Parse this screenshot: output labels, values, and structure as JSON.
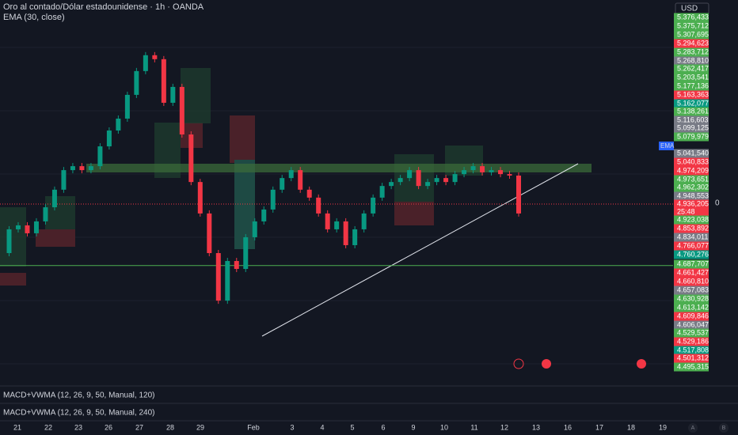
{
  "header": {
    "symbol": "Oro al contado/Dólar estadounidense · 1h · OANDA",
    "indicator": "EMA (30, close)"
  },
  "chart": {
    "ylim": [
      4227,
      5760
    ],
    "closes": [
      4738,
      4834,
      4850,
      4818,
      4866,
      4923,
      4994,
      5073,
      5089,
      5073,
      5089,
      5169,
      5233,
      5281,
      5377,
      5473,
      5537,
      5521,
      5345,
      5409,
      5217,
      5025,
      4898,
      4738,
      4546,
      4706,
      4674,
      4802,
      4866,
      4914,
      4994,
      5041,
      5073,
      4994,
      4962,
      4898,
      4834,
      4866,
      4770,
      4834,
      4898,
      4962,
      5009,
      5025,
      5041,
      5073,
      5009,
      5025,
      5041,
      5025,
      5057,
      5073,
      5089,
      5064,
      5073,
      5057,
      5051,
      4898
    ],
    "current_price": 4936.205,
    "support_level": 4687.707,
    "up_color": "#089981",
    "down_color": "#f23645"
  },
  "price_axis": {
    "currency": "USD",
    "ema_badge": "EMA",
    "countdown": "25:48",
    "zero": "0",
    "labels": [
      {
        "text": "5.376,433",
        "color": "#4caf50"
      },
      {
        "text": "5.375,712",
        "color": "#4caf50"
      },
      {
        "text": "5.307,695",
        "color": "#4caf50"
      },
      {
        "text": "5.294,623",
        "color": "#f23645"
      },
      {
        "text": "5.283,712",
        "color": "#4caf50"
      },
      {
        "text": "5.268,810",
        "color": "#787b86"
      },
      {
        "text": "5.262,417",
        "color": "#4caf50"
      },
      {
        "text": "5.203,541",
        "color": "#4caf50"
      },
      {
        "text": "5.177,136",
        "color": "#4caf50"
      },
      {
        "text": "5.163,363",
        "color": "#f23645"
      },
      {
        "text": "5.162,077",
        "color": "#089981"
      },
      {
        "text": "5.138,261",
        "color": "#4caf50"
      },
      {
        "text": "5.116,603",
        "color": "#787b86"
      },
      {
        "text": "5.099,125",
        "color": "#787b86"
      },
      {
        "text": "5.079,979",
        "color": "#4caf50"
      },
      {
        "text": "5.041,540",
        "color": "#787b86"
      },
      {
        "text": "5.040,833",
        "color": "#f23645"
      },
      {
        "text": "4.974,209",
        "color": "#f23645"
      },
      {
        "text": "4.973,651",
        "color": "#4caf50"
      },
      {
        "text": "4.962,302",
        "color": "#4caf50"
      },
      {
        "text": "4.948,553",
        "color": "#787b86"
      },
      {
        "text": "4.936,205",
        "color": "#f23645"
      },
      {
        "text": "4.923,038",
        "color": "#4caf50"
      },
      {
        "text": "4.853,892",
        "color": "#f23645"
      },
      {
        "text": "4.834,011",
        "color": "#787b86"
      },
      {
        "text": "4.766,077",
        "color": "#f23645"
      },
      {
        "text": "4.760,276",
        "color": "#089981"
      },
      {
        "text": "4.687,707",
        "color": "#4caf50"
      },
      {
        "text": "4.661,427",
        "color": "#f23645"
      },
      {
        "text": "4.660,810",
        "color": "#f23645"
      },
      {
        "text": "4.657,083",
        "color": "#787b86"
      },
      {
        "text": "4.630,928",
        "color": "#4caf50"
      },
      {
        "text": "4.613,142",
        "color": "#4caf50"
      },
      {
        "text": "4.609,846",
        "color": "#f23645"
      },
      {
        "text": "4.606,047",
        "color": "#787b86"
      },
      {
        "text": "4.529,537",
        "color": "#4caf50"
      },
      {
        "text": "4.529,186",
        "color": "#f23645"
      },
      {
        "text": "4.517,808",
        "color": "#089981"
      },
      {
        "text": "4.501,312",
        "color": "#f23645"
      },
      {
        "text": "4.495,315",
        "color": "#4caf50"
      }
    ]
  },
  "panes": [
    "MACD+VWMA (12, 26, 9, 50, Manual, 120)",
    "MACD+VWMA (12, 26, 9, 50, Manual, 240)"
  ],
  "time_axis": [
    "21",
    "22",
    "23",
    "26",
    "27",
    "28",
    "29",
    "Feb",
    "3",
    "4",
    "5",
    "6",
    "9",
    "10",
    "11",
    "12",
    "13",
    "16",
    "17",
    "18",
    "19"
  ],
  "corner_buttons": [
    "A",
    "B"
  ]
}
